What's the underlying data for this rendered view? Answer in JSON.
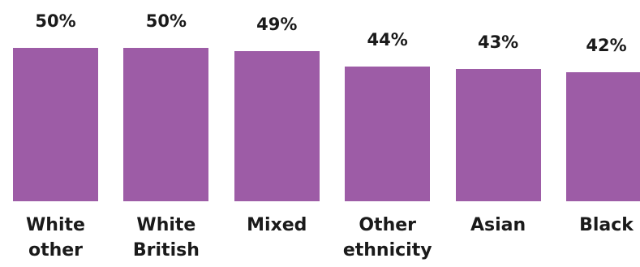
{
  "chart_data": {
    "type": "bar",
    "categories": [
      "White other",
      "White British",
      "Mixed",
      "Other ethnicity",
      "Asian",
      "Black"
    ],
    "values": [
      50,
      50,
      49,
      44,
      43,
      42
    ],
    "value_labels": [
      "50%",
      "50%",
      "49%",
      "44%",
      "43%",
      "42%"
    ],
    "color": "#9d5ca6"
  }
}
